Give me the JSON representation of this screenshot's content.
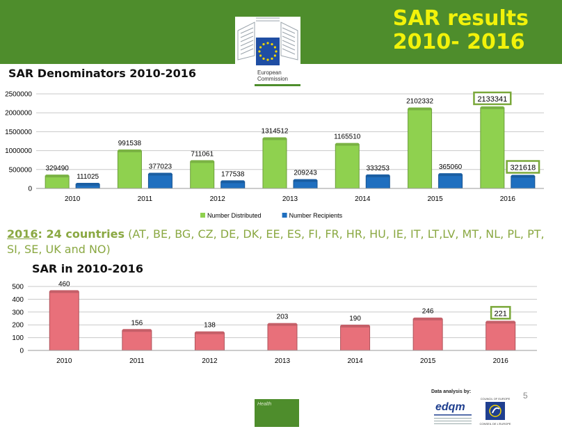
{
  "header": {
    "title_line1": "SAR results",
    "title_line2": "2010- 2016",
    "logo_line1": "European",
    "logo_line2": "Commission",
    "logo_colors": {
      "flag": "#1f4ea3",
      "stars": "#f4d600"
    }
  },
  "countries_note": {
    "year": "2016",
    "count": ": 24 countries",
    "list": " (AT, BE, BG, CZ, DE, DK, EE, ES, FI, FR, HR, HU, IE, IT, LT,LV, MT, NL, PL, PT, SI, SE, UK and NO)"
  },
  "footer": {
    "page_number": "5",
    "health_label": "Health",
    "data_analysis_label": "Data analysis by:",
    "edqm_logo": "edqm",
    "coe_logo_top": "COUNCIL OF EUROPE",
    "coe_logo_bottom": "CONSEIL DE L'EUROPE"
  },
  "chart_data": [
    {
      "type": "bar",
      "title": "SAR Denominators 2010-2016",
      "categories": [
        "2010",
        "2011",
        "2012",
        "2013",
        "2014",
        "2015",
        "2016"
      ],
      "series": [
        {
          "name": "Number Distributed",
          "color": "#8fd14f",
          "values": [
            329490,
            991538,
            711061,
            1314512,
            1165510,
            2102332,
            2133341
          ]
        },
        {
          "name": "Number Recipients",
          "color": "#1f6fbf",
          "values": [
            111025,
            377023,
            177538,
            209243,
            333253,
            365060,
            321618
          ]
        }
      ],
      "y_ticks": [
        "0",
        "500000",
        "1000000",
        "1500000",
        "2000000",
        "2500000"
      ],
      "ylim": [
        0,
        2500000
      ],
      "highlighted_labels": [
        "2133341",
        "321618"
      ],
      "legend": "bottom",
      "grid": true
    },
    {
      "type": "bar",
      "title": "SAR in 2010-2016",
      "categories": [
        "2010",
        "2011",
        "2012",
        "2013",
        "2014",
        "2015",
        "2016"
      ],
      "series": [
        {
          "color": "#e8707a",
          "values": [
            460,
            156,
            138,
            203,
            190,
            246,
            221
          ]
        }
      ],
      "y_ticks": [
        "0",
        "100",
        "200",
        "300",
        "400",
        "500"
      ],
      "ylim": [
        0,
        500
      ],
      "highlighted_labels": [
        "221"
      ],
      "legend": "none",
      "grid": true
    }
  ]
}
